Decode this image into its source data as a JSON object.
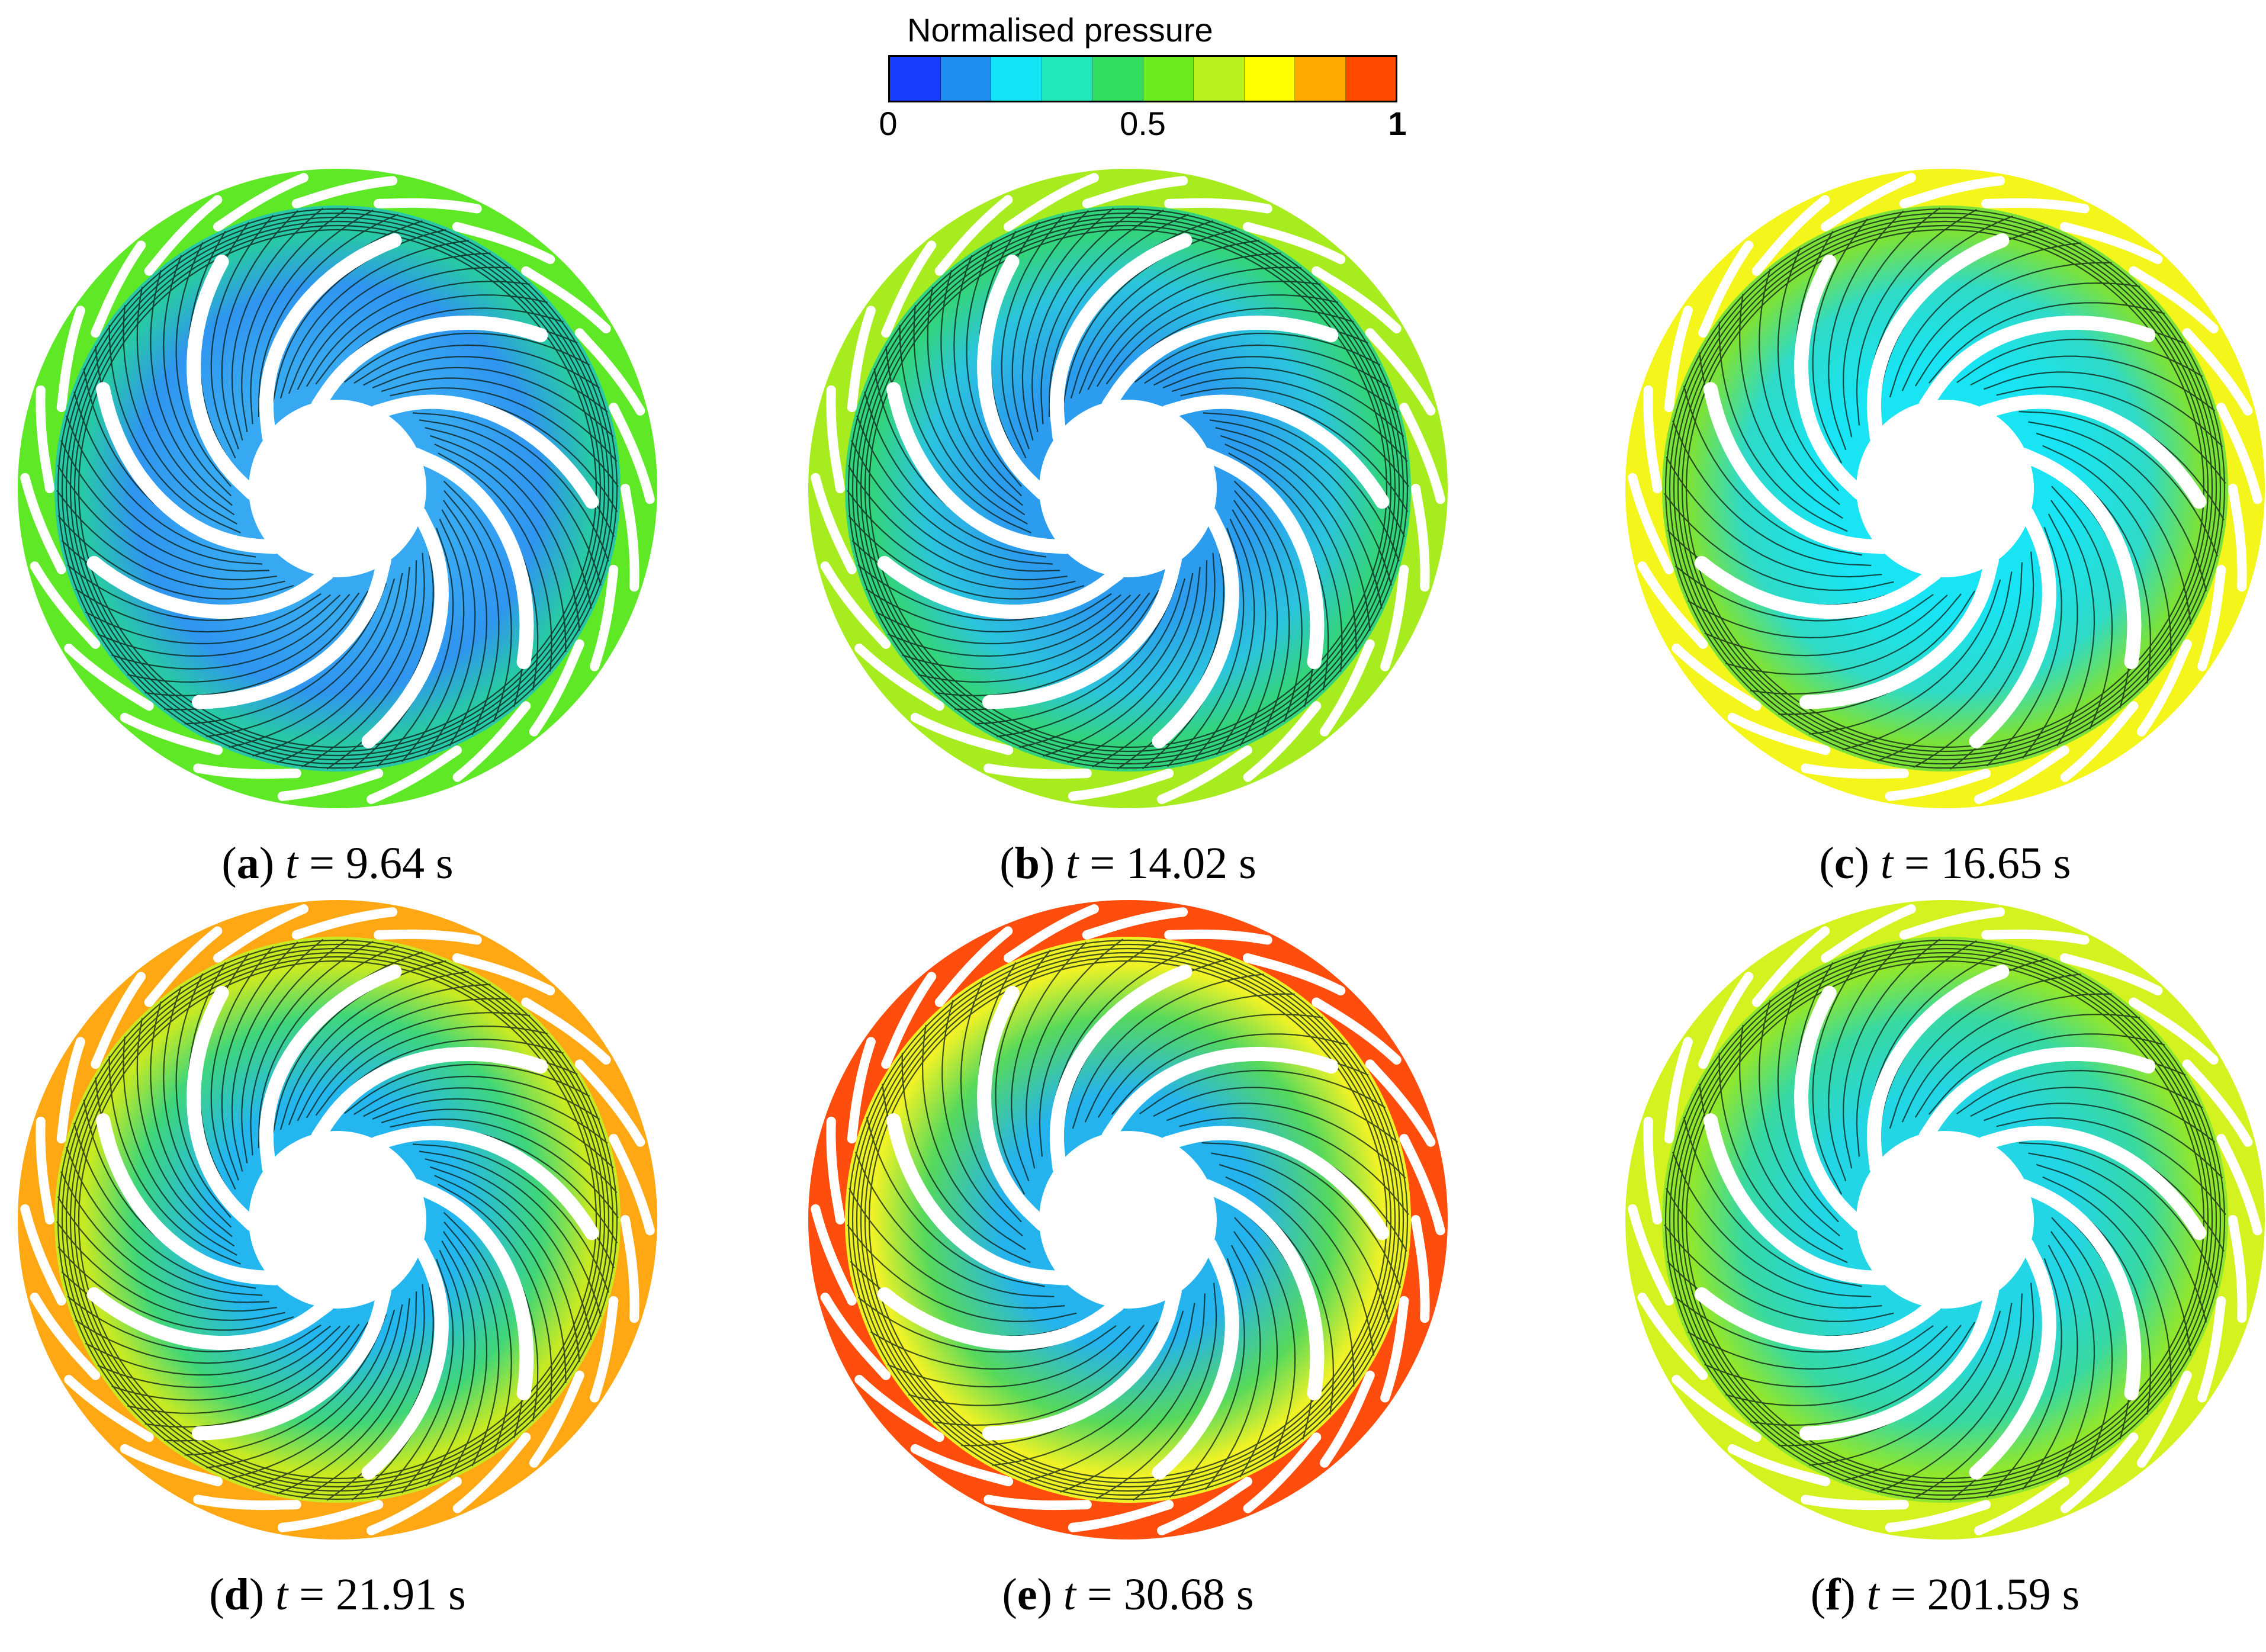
{
  "colorbar": {
    "title": "Normalised pressure",
    "ticks": [
      {
        "label": "0",
        "value": 0,
        "bold": false
      },
      {
        "label": "0.5",
        "value": 0.5,
        "bold": false
      },
      {
        "label": "1",
        "value": 1,
        "bold": true
      }
    ],
    "colors": [
      "#1a3cff",
      "#1e8ef0",
      "#12e3f5",
      "#20e8b8",
      "#30dd60",
      "#6cec1e",
      "#b7f01c",
      "#ffff00",
      "#ffa800",
      "#ff4a00"
    ]
  },
  "panels": [
    {
      "letter": "a",
      "pre": "(",
      "post": ")",
      "var": "t",
      "value": " = 9.64 s",
      "ring": "#5fe825",
      "mid": "#28c9a6",
      "passage": "#2f95f0",
      "hub_zone": "#37a9f2",
      "line_density": "high",
      "lines": "#0b1a12"
    },
    {
      "letter": "b",
      "pre": "(",
      "post": ")",
      "var": "t",
      "value": " = 14.02 s",
      "ring": "#a6ec1e",
      "mid": "#33d47e",
      "passage": "#2bc4de",
      "hub_zone": "#2b9cee",
      "line_density": "high",
      "lines": "#0b1a12"
    },
    {
      "letter": "c",
      "pre": "(",
      "post": ")",
      "var": "t",
      "value": " = 16.65 s",
      "ring": "#f4f51a",
      "mid": "#7be23a",
      "passage": "#2fdac6",
      "hub_zone": "#18e4f3",
      "line_density": "medium",
      "lines": "#0b1a12"
    },
    {
      "letter": "d",
      "pre": "(",
      "post": ")",
      "var": "t",
      "value": " = 21.91 s",
      "ring": "#ffa814",
      "mid": "#c9ea22",
      "passage": "#3fd67a",
      "hub_zone": "#24b7ef",
      "line_density": "high",
      "lines": "#0b1a12"
    },
    {
      "letter": "e",
      "pre": "(",
      "post": ")",
      "var": "t",
      "value": " = 30.68 s",
      "ring": "#ff4d0d",
      "mid": "#eef226",
      "passage": "#56d95c",
      "hub_zone": "#25b3ee",
      "line_density": "medium",
      "lines": "#0b1a12"
    },
    {
      "letter": "f",
      "pre": "(",
      "post": ")",
      "var": "t",
      "value": " = 201.59 s",
      "ring": "#d4f220",
      "mid": "#8fe72e",
      "passage": "#38d9a0",
      "hub_zone": "#22d6e6",
      "line_density": "medium",
      "lines": "#0b1a12"
    }
  ]
}
